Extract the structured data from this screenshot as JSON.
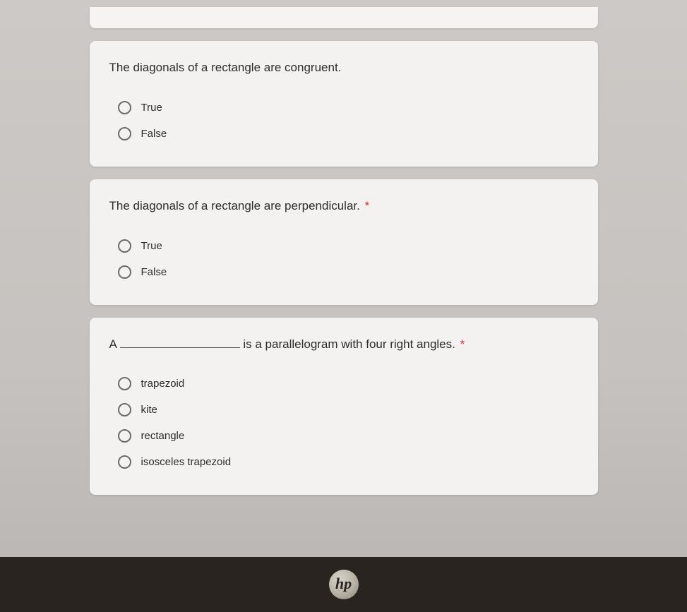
{
  "questions": [
    {
      "text": "The diagonals of a rectangle are congruent.",
      "required": false,
      "options": [
        "True",
        "False"
      ]
    },
    {
      "text": "The diagonals of a rectangle are perpendicular.",
      "required": true,
      "options": [
        "True",
        "False"
      ]
    },
    {
      "prefix": "A",
      "suffix": "is a parallelogram with four right angles.",
      "required": true,
      "hasBlank": true,
      "options": [
        "trapezoid",
        "kite",
        "rectangle",
        "isosceles trapezoid"
      ]
    }
  ],
  "requiredMark": "*",
  "logo": "hp",
  "colors": {
    "cardBg": "#f3f2f0",
    "bodyBg": "#c5c2bf",
    "text": "#2c2c2c",
    "required": "#d93025",
    "radioBorder": "#6b6b6b",
    "bezel": "#2a2420"
  }
}
